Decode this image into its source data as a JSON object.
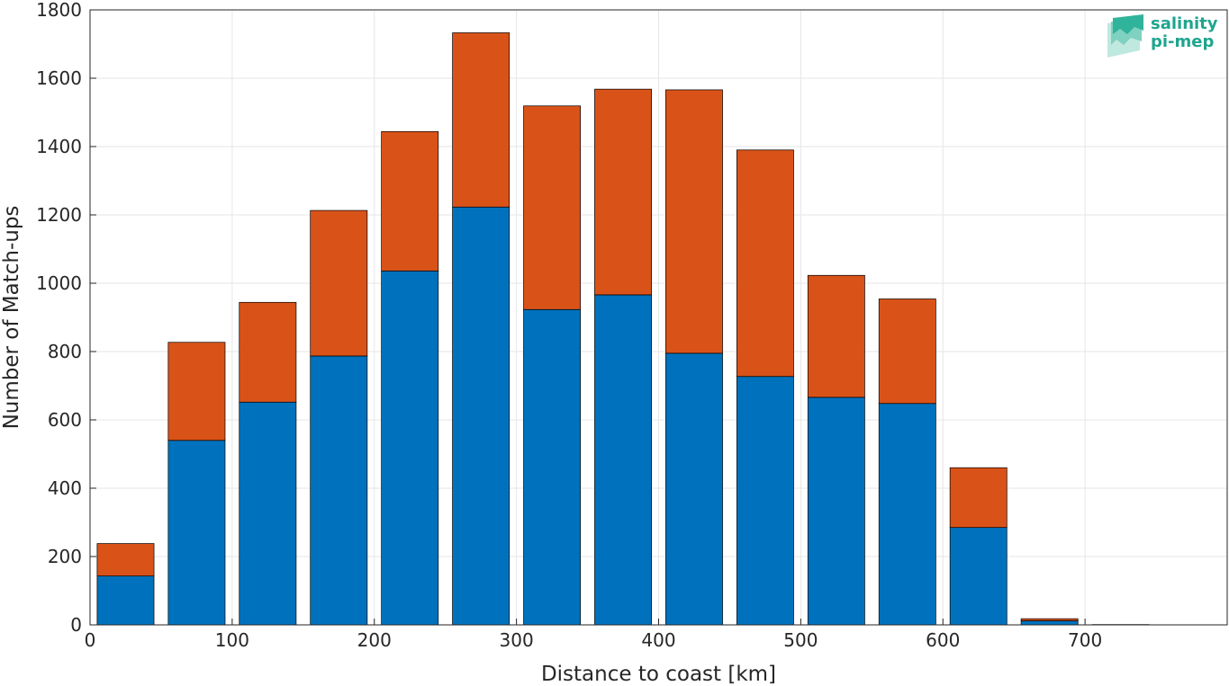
{
  "chart_data": {
    "type": "bar",
    "stacked": true,
    "x": [
      25,
      75,
      125,
      175,
      225,
      275,
      325,
      375,
      425,
      475,
      525,
      575,
      625,
      675,
      725
    ],
    "series": [
      {
        "values": [
          143,
          540,
          652,
          787,
          1036,
          1223,
          923,
          966,
          795,
          727,
          666,
          648,
          285,
          12,
          0
        ],
        "color": "#0072BD"
      },
      {
        "values": [
          95,
          287,
          292,
          426,
          408,
          510,
          596,
          602,
          771,
          663,
          357,
          306,
          175,
          6,
          1
        ],
        "color": "#D95319"
      }
    ],
    "xlabel": "Distance to coast [km]",
    "ylabel": "Number of Match-ups",
    "xlim": [
      0,
      800
    ],
    "ylim": [
      0,
      1800
    ],
    "xticks": [
      0,
      100,
      200,
      300,
      400,
      500,
      600,
      700
    ],
    "yticks": [
      0,
      200,
      400,
      600,
      800,
      1000,
      1200,
      1400,
      1600,
      1800
    ],
    "grid": true
  },
  "logo": {
    "line1": "salinity",
    "line2": "pi-mep",
    "color": "#1fa58e"
  }
}
